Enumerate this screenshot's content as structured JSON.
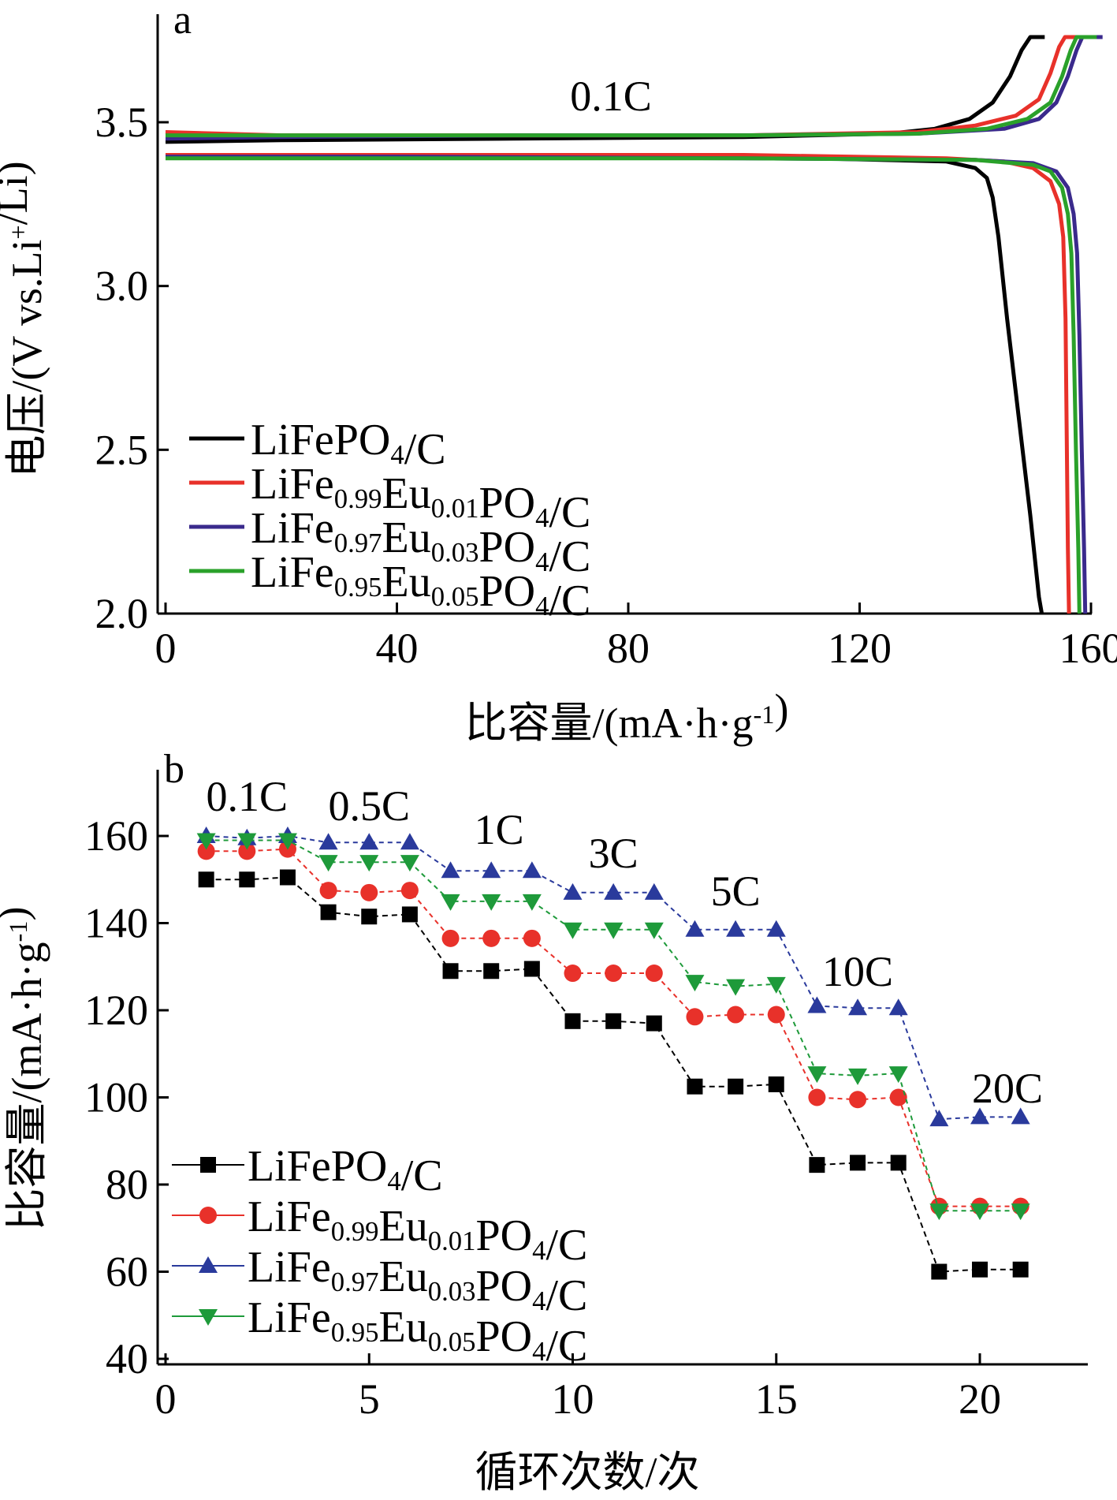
{
  "chart_data": [
    {
      "panel": "a",
      "type": "line",
      "xlabel": "比容量/(mA·h·g-1)",
      "ylabel": "电压/(V vs.Li+/Li)",
      "xlim": [
        0,
        160
      ],
      "ylim": [
        2.0,
        3.8
      ],
      "xticks": [
        "0",
        "40",
        "80",
        "120",
        "160"
      ],
      "yticks": [
        "2.0",
        "2.5",
        "3.0",
        "3.5"
      ],
      "annotations": [
        "0.1C"
      ],
      "legend_position": "bottom-left",
      "series": [
        {
          "name": "LiFePO4/C",
          "color": "#000000",
          "charge": [
            [
              0,
              3.44
            ],
            [
              20,
              3.445
            ],
            [
              60,
              3.45
            ],
            [
              100,
              3.455
            ],
            [
              125,
              3.465
            ],
            [
              133,
              3.48
            ],
            [
              139,
              3.51
            ],
            [
              143,
              3.56
            ],
            [
              146,
              3.64
            ],
            [
              148,
              3.72
            ],
            [
              149.5,
              3.76
            ],
            [
              152,
              3.76
            ]
          ],
          "discharge": [
            [
              0,
              3.4
            ],
            [
              40,
              3.4
            ],
            [
              100,
              3.395
            ],
            [
              135,
              3.38
            ],
            [
              140,
              3.36
            ],
            [
              142,
              3.33
            ],
            [
              143,
              3.27
            ],
            [
              144,
              3.15
            ],
            [
              145.5,
              2.9
            ],
            [
              147.5,
              2.6
            ],
            [
              149.5,
              2.3
            ],
            [
              151,
              2.05
            ],
            [
              151.5,
              2.0
            ]
          ]
        },
        {
          "name": "LiFe0.99Eu0.01PO4/C",
          "color": "#e8312a",
          "charge": [
            [
              0,
              3.47
            ],
            [
              20,
              3.46
            ],
            [
              60,
              3.46
            ],
            [
              100,
              3.46
            ],
            [
              130,
              3.47
            ],
            [
              140,
              3.49
            ],
            [
              147,
              3.52
            ],
            [
              151,
              3.57
            ],
            [
              153,
              3.65
            ],
            [
              154.5,
              3.73
            ],
            [
              155.5,
              3.76
            ],
            [
              159,
              3.76
            ]
          ],
          "discharge": [
            [
              0,
              3.4
            ],
            [
              40,
              3.4
            ],
            [
              100,
              3.4
            ],
            [
              135,
              3.39
            ],
            [
              145,
              3.38
            ],
            [
              150,
              3.36
            ],
            [
              153,
              3.32
            ],
            [
              154.5,
              3.25
            ],
            [
              155.2,
              3.15
            ],
            [
              155.6,
              2.9
            ],
            [
              155.8,
              2.55
            ],
            [
              156.0,
              2.2
            ],
            [
              156.2,
              2.0
            ]
          ]
        },
        {
          "name": "LiFe0.97Eu0.03PO4/C",
          "color": "#3a2a8c",
          "charge": [
            [
              0,
              3.45
            ],
            [
              20,
              3.455
            ],
            [
              60,
              3.46
            ],
            [
              100,
              3.46
            ],
            [
              130,
              3.465
            ],
            [
              145,
              3.48
            ],
            [
              151,
              3.51
            ],
            [
              154,
              3.56
            ],
            [
              156,
              3.64
            ],
            [
              157.5,
              3.72
            ],
            [
              158.5,
              3.76
            ],
            [
              162,
              3.76
            ]
          ],
          "discharge": [
            [
              0,
              3.395
            ],
            [
              40,
              3.395
            ],
            [
              100,
              3.39
            ],
            [
              140,
              3.385
            ],
            [
              150,
              3.375
            ],
            [
              154,
              3.35
            ],
            [
              156,
              3.3
            ],
            [
              157,
              3.22
            ],
            [
              157.6,
              3.1
            ],
            [
              158,
              2.85
            ],
            [
              158.4,
              2.5
            ],
            [
              158.8,
              2.2
            ],
            [
              159.0,
              2.0
            ]
          ]
        },
        {
          "name": "LiFe0.95Eu0.05PO4/C",
          "color": "#2aa12a",
          "charge": [
            [
              0,
              3.46
            ],
            [
              20,
              3.46
            ],
            [
              60,
              3.46
            ],
            [
              100,
              3.46
            ],
            [
              130,
              3.465
            ],
            [
              142,
              3.48
            ],
            [
              149,
              3.51
            ],
            [
              153,
              3.56
            ],
            [
              155,
              3.64
            ],
            [
              156.5,
              3.72
            ],
            [
              157.5,
              3.76
            ],
            [
              161,
              3.76
            ]
          ],
          "discharge": [
            [
              0,
              3.39
            ],
            [
              40,
              3.39
            ],
            [
              100,
              3.39
            ],
            [
              140,
              3.385
            ],
            [
              150,
              3.37
            ],
            [
              153,
              3.35
            ],
            [
              155,
              3.3
            ],
            [
              156,
              3.22
            ],
            [
              156.6,
              3.1
            ],
            [
              157,
              2.85
            ],
            [
              157.4,
              2.5
            ],
            [
              157.8,
              2.2
            ],
            [
              158,
              2.0
            ]
          ]
        }
      ]
    },
    {
      "panel": "b",
      "type": "line",
      "xlabel": "循环次数/次",
      "ylabel": "比容量/(mA·h·g-1)",
      "xlim": [
        0,
        22.5
      ],
      "ylim": [
        40,
        175
      ],
      "xticks": [
        "0",
        "5",
        "10",
        "15",
        "20"
      ],
      "yticks": [
        "40",
        "60",
        "80",
        "100",
        "120",
        "140",
        "160"
      ],
      "rate_labels": [
        "0.1C",
        "0.5C",
        "1C",
        "3C",
        "5C",
        "10C",
        "20C"
      ],
      "legend_position": "bottom-left",
      "x": [
        1,
        2,
        3,
        4,
        5,
        6,
        7,
        8,
        9,
        10,
        11,
        12,
        13,
        14,
        15,
        16,
        17,
        18,
        19,
        20,
        21
      ],
      "series": [
        {
          "name": "LiFePO4/C",
          "color": "#000000",
          "marker": "square",
          "values": [
            150,
            150,
            150.5,
            142.5,
            141.5,
            142,
            129,
            129,
            129.5,
            117.5,
            117.5,
            117,
            102.5,
            102.5,
            103,
            84.5,
            85,
            85,
            60,
            60.5,
            60.5
          ]
        },
        {
          "name": "LiFe0.99Eu0.01PO4/C",
          "color": "#e8312a",
          "marker": "circle",
          "values": [
            156.5,
            156.5,
            157,
            147.5,
            147,
            147.5,
            136.5,
            136.5,
            136.5,
            128.5,
            128.5,
            128.5,
            118.5,
            119,
            119,
            100,
            99.5,
            100,
            75,
            75,
            75
          ]
        },
        {
          "name": "LiFe0.97Eu0.03PO4/C",
          "color": "#2a3a9c",
          "marker": "triangle-up",
          "values": [
            160,
            159.5,
            160,
            158.5,
            158.5,
            158.5,
            152,
            152,
            152,
            147,
            147,
            147,
            138.5,
            138.5,
            138.5,
            121,
            120.5,
            120.5,
            95,
            95.5,
            95.5
          ]
        },
        {
          "name": "LiFe0.95Eu0.05PO4/C",
          "color": "#1e9a3a",
          "marker": "triangle-down",
          "values": [
            159,
            159,
            159,
            154,
            154,
            154,
            145,
            145,
            145,
            138.5,
            138.5,
            138.5,
            126.5,
            125.5,
            126,
            105.5,
            105,
            105.5,
            74,
            74,
            74
          ]
        }
      ]
    }
  ]
}
